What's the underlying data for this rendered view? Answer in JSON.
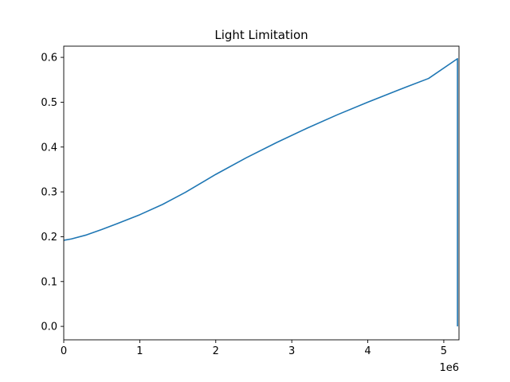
{
  "chart_data": {
    "type": "line",
    "title": "Light Limitation",
    "xlabel": "",
    "ylabel": "",
    "x_offset_label": "1e6",
    "xlim": [
      0,
      5.2
    ],
    "ylim": [
      -0.03,
      0.625
    ],
    "xticks": [
      0,
      1,
      2,
      3,
      4,
      5
    ],
    "xtick_labels": [
      "0",
      "1",
      "2",
      "3",
      "4",
      "5"
    ],
    "yticks": [
      0.0,
      0.1,
      0.2,
      0.3,
      0.4,
      0.5,
      0.6
    ],
    "ytick_labels": [
      "0.0",
      "0.1",
      "0.2",
      "0.3",
      "0.4",
      "0.5",
      "0.6"
    ],
    "grid": false,
    "legend": "none",
    "series": [
      {
        "color": "#1f77b4",
        "x": [
          0,
          0.1,
          0.3,
          0.5,
          0.7,
          1.0,
          1.3,
          1.6,
          2.0,
          2.4,
          2.8,
          3.2,
          3.6,
          4.0,
          4.4,
          4.8,
          5.18,
          5.18
        ],
        "y": [
          0.192,
          0.195,
          0.204,
          0.216,
          0.229,
          0.249,
          0.272,
          0.299,
          0.339,
          0.376,
          0.41,
          0.442,
          0.472,
          0.5,
          0.527,
          0.553,
          0.597,
          0.0
        ]
      }
    ]
  }
}
